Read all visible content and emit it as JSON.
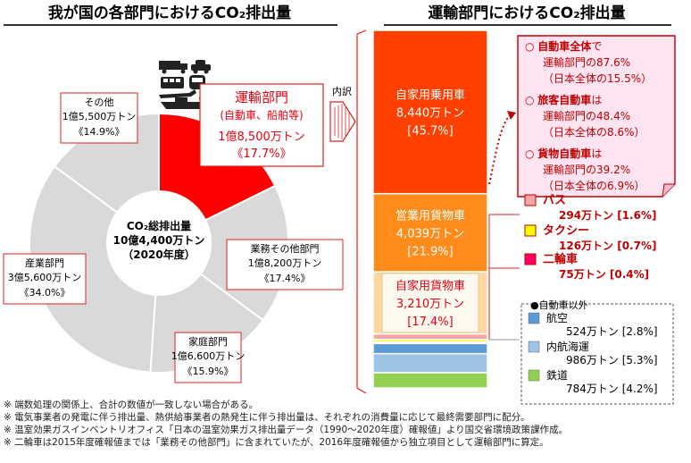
{
  "left_title": "我が国の各部門におけるCO₂排出量",
  "right_title": "運輸部門におけるCO₂排出量",
  "center": {
    "line1": "CO₂総排出量",
    "line2": "10億4,400万トン",
    "line3": "（2020年度）"
  },
  "breakdown_label": "内訳",
  "chart_data": [
    {
      "type": "pie",
      "title": "我が国の各部門におけるCO₂排出量",
      "categories": [
        "運輸部門",
        "業務その他部門",
        "家庭部門",
        "産業部門",
        "その他"
      ],
      "values_text": [
        "1億8,500万トン",
        "1億8,200万トン",
        "1億6,600万トン",
        "3億5,600万トン",
        "1億5,500万トン"
      ],
      "values": [
        185,
        182,
        166,
        356,
        155
      ],
      "percent_text": [
        "《17.7%》",
        "《17.4%》",
        "《15.9%》",
        "《34.0%》",
        "《14.9%》"
      ],
      "percent": [
        17.7,
        17.4,
        15.9,
        34.0,
        14.9
      ],
      "sublabel": "(自動車、船舶等)",
      "colors": [
        "#ff0000",
        "#d9d9d9",
        "#d9d9d9",
        "#d9d9d9",
        "#d9d9d9"
      ],
      "total": "10億4,400万トン",
      "year": "2020年度"
    },
    {
      "type": "bar",
      "title": "運輸部門におけるCO₂排出量",
      "stacked": true,
      "series": [
        {
          "name": "自家用乗用車",
          "value_text": "8,440万トン",
          "value": 8440,
          "percent_text": "[45.7%]",
          "percent": 45.7,
          "color": "#ff4000"
        },
        {
          "name": "営業用貨物車",
          "value_text": "4,039万トン",
          "value": 4039,
          "percent_text": "[21.9%]",
          "percent": 21.9,
          "color": "#ff8c1a"
        },
        {
          "name": "自家用貨物車",
          "value_text": "3,210万トン",
          "value": 3210,
          "percent_text": "[17.4%]",
          "percent": 17.4,
          "color": "#ffd7a0"
        },
        {
          "name": "バス",
          "value_text": "294万トン",
          "value": 294,
          "percent_text": "[1.6%]",
          "percent": 1.6,
          "color": "#f4a6a6"
        },
        {
          "name": "タクシー",
          "value_text": "126万トン",
          "value": 126,
          "percent_text": "[0.7%]",
          "percent": 0.7,
          "color": "#ffff00"
        },
        {
          "name": "二輪車",
          "value_text": "75万トン",
          "value": 75,
          "percent_text": "[0.4%]",
          "percent": 0.4,
          "color": "#ff0066"
        },
        {
          "name": "航空",
          "value_text": "524万トン",
          "value": 524,
          "percent_text": "[2.8%]",
          "percent": 2.8,
          "color": "#5b9bd5"
        },
        {
          "name": "内航海運",
          "value_text": "986万トン",
          "value": 986,
          "percent_text": "[5.3%]",
          "percent": 5.3,
          "color": "#9dc3e6"
        },
        {
          "name": "鉄道",
          "value_text": "784万トン",
          "value": 784,
          "percent_text": "[4.2%]",
          "percent": 4.2,
          "color": "#92d050"
        }
      ]
    }
  ],
  "callout": [
    {
      "bold": "自動車全体",
      "tail": "で",
      "l2": "運輸部門の87.6%",
      "l3": "（日本全体の15.5%）"
    },
    {
      "bold": "旅客自動車",
      "tail": "は",
      "l2": "運輸部門の48.4%",
      "l3": "（日本全体の8.6%）"
    },
    {
      "bold": "貨物自動車",
      "tail": "は",
      "l2": "運輸部門の39.2%",
      "l3": "（日本全体の6.9%）"
    }
  ],
  "non_auto_title": "●自動車以外",
  "notes": [
    "※ 端数処理の関係上、合計の数値が一致しない場合がある。",
    "※ 電気事業者の発電に伴う排出量、熱供給事業者の熱発生に伴う排出量は、それぞれの消費量に応じて最終需要部門に配分。",
    "※ 温室効果ガスインベントリオフィス「日本の温室効果ガス排出量データ（1990～2020年度）確報値」より国交省環境政策課作成。",
    "※ 二輪車は2015年度確報値までは「業務その他部門」に含まれていたが、2016年度確報値から独立項目として運輸部門に算定。"
  ],
  "colors": {
    "accent": "#e60012",
    "border": "#c00000"
  }
}
